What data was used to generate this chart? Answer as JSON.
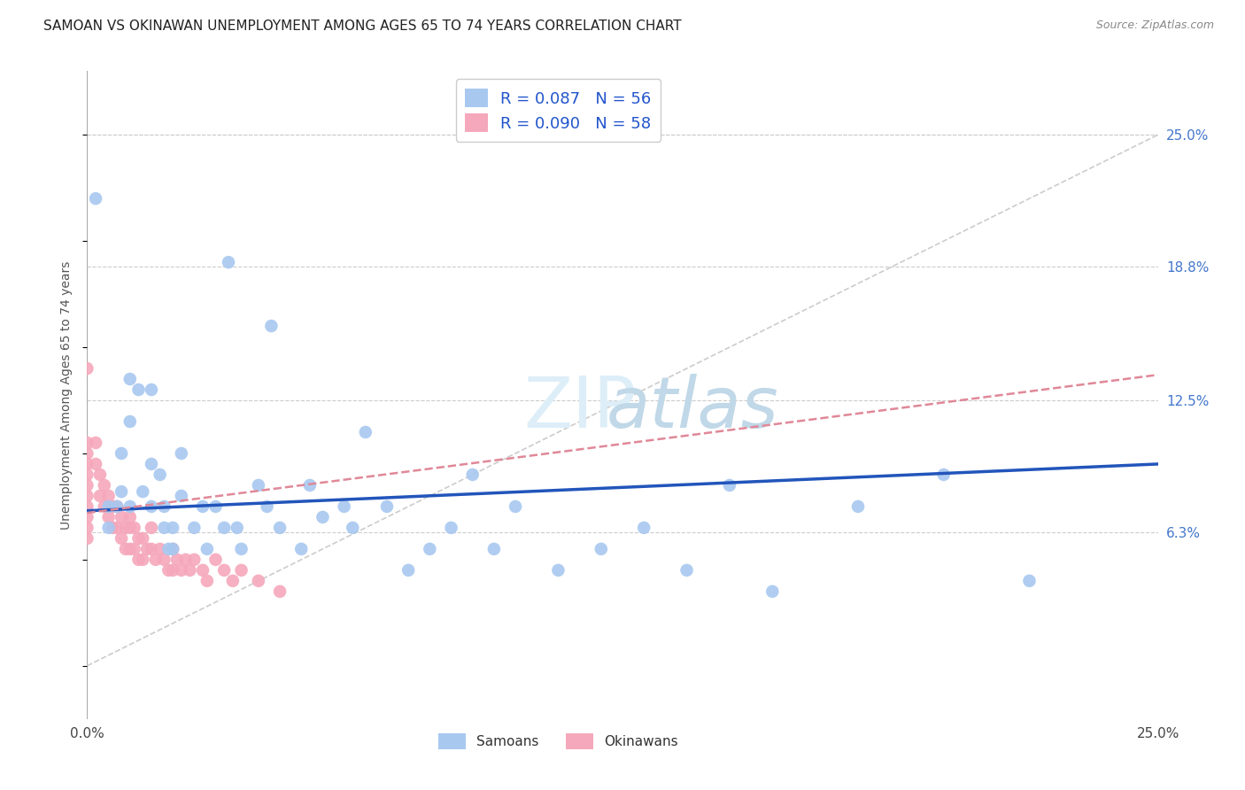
{
  "title": "SAMOAN VS OKINAWAN UNEMPLOYMENT AMONG AGES 65 TO 74 YEARS CORRELATION CHART",
  "source": "Source: ZipAtlas.com",
  "ylabel": "Unemployment Among Ages 65 to 74 years",
  "xlim": [
    0.0,
    0.25
  ],
  "ylim": [
    -0.025,
    0.28
  ],
  "ytick_right_labels": [
    "6.3%",
    "12.5%",
    "18.8%",
    "25.0%"
  ],
  "ytick_right_values": [
    0.063,
    0.125,
    0.188,
    0.25
  ],
  "samoan_R": 0.087,
  "samoan_N": 56,
  "okinawan_R": 0.09,
  "okinawan_N": 58,
  "samoan_color": "#a8c8f0",
  "okinawan_color": "#f5a8bb",
  "samoan_line_color": "#2255bb",
  "okinawan_line_color": "#e08898",
  "background_color": "#ffffff",
  "title_fontsize": 11,
  "samoan_x": [
    0.002,
    0.005,
    0.005,
    0.007,
    0.008,
    0.008,
    0.01,
    0.01,
    0.01,
    0.012,
    0.013,
    0.015,
    0.015,
    0.015,
    0.017,
    0.018,
    0.018,
    0.019,
    0.02,
    0.02,
    0.022,
    0.022,
    0.025,
    0.027,
    0.028,
    0.03,
    0.032,
    0.033,
    0.035,
    0.036,
    0.04,
    0.042,
    0.043,
    0.045,
    0.05,
    0.052,
    0.055,
    0.06,
    0.062,
    0.065,
    0.07,
    0.075,
    0.08,
    0.085,
    0.09,
    0.095,
    0.1,
    0.11,
    0.12,
    0.13,
    0.14,
    0.15,
    0.16,
    0.18,
    0.2,
    0.22
  ],
  "samoan_y": [
    0.22,
    0.075,
    0.065,
    0.075,
    0.1,
    0.082,
    0.135,
    0.115,
    0.075,
    0.13,
    0.082,
    0.13,
    0.095,
    0.075,
    0.09,
    0.075,
    0.065,
    0.055,
    0.065,
    0.055,
    0.1,
    0.08,
    0.065,
    0.075,
    0.055,
    0.075,
    0.065,
    0.19,
    0.065,
    0.055,
    0.085,
    0.075,
    0.16,
    0.065,
    0.055,
    0.085,
    0.07,
    0.075,
    0.065,
    0.11,
    0.075,
    0.045,
    0.055,
    0.065,
    0.09,
    0.055,
    0.075,
    0.045,
    0.055,
    0.065,
    0.045,
    0.085,
    0.035,
    0.075,
    0.09,
    0.04
  ],
  "okinawan_x": [
    0.0,
    0.0,
    0.0,
    0.0,
    0.0,
    0.0,
    0.0,
    0.0,
    0.0,
    0.0,
    0.0,
    0.002,
    0.002,
    0.003,
    0.003,
    0.004,
    0.004,
    0.005,
    0.005,
    0.006,
    0.006,
    0.007,
    0.007,
    0.008,
    0.008,
    0.009,
    0.009,
    0.01,
    0.01,
    0.01,
    0.011,
    0.011,
    0.012,
    0.012,
    0.013,
    0.013,
    0.014,
    0.015,
    0.015,
    0.016,
    0.017,
    0.018,
    0.019,
    0.02,
    0.02,
    0.021,
    0.022,
    0.023,
    0.024,
    0.025,
    0.027,
    0.028,
    0.03,
    0.032,
    0.034,
    0.036,
    0.04,
    0.045
  ],
  "okinawan_y": [
    0.14,
    0.105,
    0.1,
    0.095,
    0.09,
    0.085,
    0.08,
    0.075,
    0.07,
    0.065,
    0.06,
    0.105,
    0.095,
    0.09,
    0.08,
    0.085,
    0.075,
    0.08,
    0.07,
    0.075,
    0.065,
    0.075,
    0.065,
    0.07,
    0.06,
    0.065,
    0.055,
    0.07,
    0.065,
    0.055,
    0.065,
    0.055,
    0.06,
    0.05,
    0.06,
    0.05,
    0.055,
    0.065,
    0.055,
    0.05,
    0.055,
    0.05,
    0.045,
    0.055,
    0.045,
    0.05,
    0.045,
    0.05,
    0.045,
    0.05,
    0.045,
    0.04,
    0.05,
    0.045,
    0.04,
    0.045,
    0.04,
    0.035
  ],
  "samoan_trend_x0": 0.0,
  "samoan_trend_x1": 0.25,
  "samoan_trend_y0": 0.073,
  "samoan_trend_y1": 0.095,
  "okinawan_trend_x0": 0.0,
  "okinawan_trend_x1": 0.05,
  "okinawan_trend_y0": 0.072,
  "okinawan_trend_y1": 0.085,
  "diag_line_color": "#cccccc",
  "grid_color": "#cccccc"
}
